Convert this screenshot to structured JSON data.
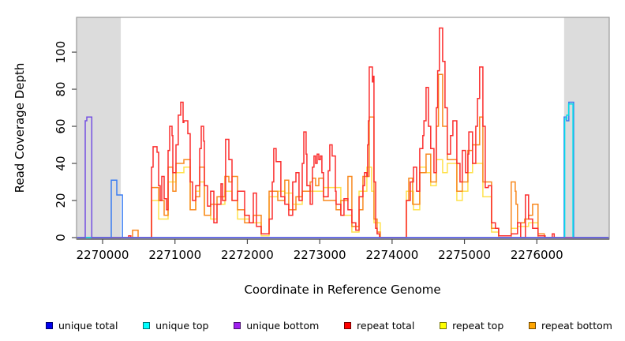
{
  "chart_data": {
    "type": "line",
    "subtype": "step",
    "title": "",
    "xlabel": "Coordinate in Reference Genome",
    "ylabel": "Read Coverage Depth",
    "x_range": [
      2269640,
      2277000
    ],
    "y_range": [
      0,
      118
    ],
    "x_ticks": [
      2270000,
      2271000,
      2272000,
      2273000,
      2274000,
      2275000,
      2276000
    ],
    "y_ticks": [
      0,
      20,
      40,
      60,
      80,
      100
    ],
    "grid": false,
    "legend_position": "bottom",
    "background_color": "#ffffff",
    "shaded_region_color": "#dcdcdc",
    "box_color": "#9a9a9a",
    "axis_color": "#4a4a4a",
    "shaded_regions": [
      {
        "x0": 2269640,
        "x1": 2270251
      },
      {
        "x0": 2276377,
        "x1": 2277000
      }
    ],
    "draw_order": [
      4,
      5,
      3,
      0,
      1,
      2
    ],
    "series": [
      {
        "name": "unique total",
        "legend_color": "#0000ee",
        "line_color": "#3a7df2",
        "points": [
          [
            2269640,
            0
          ],
          [
            2270120,
            31
          ],
          [
            2270196,
            23
          ],
          [
            2270273,
            0
          ],
          [
            2276377,
            65
          ],
          [
            2276410,
            63
          ],
          [
            2276442,
            73
          ],
          [
            2276508,
            0
          ]
        ]
      },
      {
        "name": "unique top",
        "legend_color": "#00ffff",
        "line_color": "#00dde8",
        "points": [
          [
            2269640,
            0
          ],
          [
            2276385,
            64
          ],
          [
            2276412,
            66
          ],
          [
            2276440,
            72
          ],
          [
            2276500,
            0
          ]
        ]
      },
      {
        "name": "unique bottom",
        "legend_color": "#a020f0",
        "line_color": "#7450e2",
        "points": [
          [
            2269640,
            0
          ],
          [
            2269760,
            63
          ],
          [
            2269782,
            65
          ],
          [
            2269850,
            0
          ]
        ]
      },
      {
        "name": "repeat total",
        "legend_color": "#ff0000",
        "line_color": "#fb2e2e",
        "points": [
          [
            2269640,
            0
          ],
          [
            2270360,
            1
          ],
          [
            2270390,
            0
          ],
          [
            2270676,
            38
          ],
          [
            2270698,
            49
          ],
          [
            2270752,
            46
          ],
          [
            2270774,
            28
          ],
          [
            2270796,
            20
          ],
          [
            2270818,
            33
          ],
          [
            2270850,
            21
          ],
          [
            2270883,
            15
          ],
          [
            2270905,
            47
          ],
          [
            2270927,
            60
          ],
          [
            2270959,
            55
          ],
          [
            2270970,
            35
          ],
          [
            2271014,
            50
          ],
          [
            2271046,
            66
          ],
          [
            2271079,
            73
          ],
          [
            2271112,
            62
          ],
          [
            2271123,
            63
          ],
          [
            2271177,
            56
          ],
          [
            2271210,
            30
          ],
          [
            2271243,
            20
          ],
          [
            2271286,
            28
          ],
          [
            2271341,
            48
          ],
          [
            2271363,
            60
          ],
          [
            2271395,
            52
          ],
          [
            2271406,
            28
          ],
          [
            2271450,
            17
          ],
          [
            2271493,
            25
          ],
          [
            2271537,
            8
          ],
          [
            2271581,
            18
          ],
          [
            2271635,
            29
          ],
          [
            2271657,
            20
          ],
          [
            2271700,
            53
          ],
          [
            2271744,
            42
          ],
          [
            2271788,
            20
          ],
          [
            2271864,
            25
          ],
          [
            2271918,
            25
          ],
          [
            2271962,
            12
          ],
          [
            2272027,
            8
          ],
          [
            2272082,
            24
          ],
          [
            2272126,
            6
          ],
          [
            2272191,
            2
          ],
          [
            2272300,
            10
          ],
          [
            2272344,
            30
          ],
          [
            2272365,
            48
          ],
          [
            2272398,
            41
          ],
          [
            2272463,
            22
          ],
          [
            2272518,
            18
          ],
          [
            2272572,
            12
          ],
          [
            2272627,
            30
          ],
          [
            2272671,
            35
          ],
          [
            2272714,
            20
          ],
          [
            2272758,
            40
          ],
          [
            2272780,
            57
          ],
          [
            2272812,
            45
          ],
          [
            2272823,
            28
          ],
          [
            2272867,
            18
          ],
          [
            2272899,
            38
          ],
          [
            2272921,
            44
          ],
          [
            2272943,
            40
          ],
          [
            2272965,
            45
          ],
          [
            2272987,
            42
          ],
          [
            2273009,
            44
          ],
          [
            2273030,
            35
          ],
          [
            2273052,
            22
          ],
          [
            2273117,
            36
          ],
          [
            2273139,
            50
          ],
          [
            2273172,
            44
          ],
          [
            2273216,
            25
          ],
          [
            2273226,
            18
          ],
          [
            2273292,
            12
          ],
          [
            2273335,
            21
          ],
          [
            2273390,
            15
          ],
          [
            2273444,
            8
          ],
          [
            2273499,
            4
          ],
          [
            2273543,
            22
          ],
          [
            2273597,
            28
          ],
          [
            2273619,
            35
          ],
          [
            2273652,
            33
          ],
          [
            2273662,
            50
          ],
          [
            2273673,
            63
          ],
          [
            2273684,
            92
          ],
          [
            2273728,
            84
          ],
          [
            2273739,
            87
          ],
          [
            2273750,
            30
          ],
          [
            2273772,
            5
          ],
          [
            2273793,
            2
          ],
          [
            2273826,
            0
          ],
          [
            2274197,
            20
          ],
          [
            2274251,
            30
          ],
          [
            2274295,
            38
          ],
          [
            2274338,
            25
          ],
          [
            2274382,
            48
          ],
          [
            2274425,
            55
          ],
          [
            2274440,
            63
          ],
          [
            2274469,
            81
          ],
          [
            2274502,
            60
          ],
          [
            2274534,
            48
          ],
          [
            2274578,
            35
          ],
          [
            2274611,
            70
          ],
          [
            2274630,
            90
          ],
          [
            2274654,
            113
          ],
          [
            2274698,
            95
          ],
          [
            2274731,
            70
          ],
          [
            2274763,
            45
          ],
          [
            2274807,
            55
          ],
          [
            2274840,
            63
          ],
          [
            2274894,
            40
          ],
          [
            2274938,
            30
          ],
          [
            2274970,
            47
          ],
          [
            2275014,
            35
          ],
          [
            2275047,
            45
          ],
          [
            2275060,
            57
          ],
          [
            2275112,
            40
          ],
          [
            2275156,
            60
          ],
          [
            2275180,
            75
          ],
          [
            2275210,
            92
          ],
          [
            2275254,
            60
          ],
          [
            2275287,
            27
          ],
          [
            2275330,
            28
          ],
          [
            2275374,
            8
          ],
          [
            2275428,
            5
          ],
          [
            2275472,
            1
          ],
          [
            2275646,
            2
          ],
          [
            2275733,
            8
          ],
          [
            2275777,
            0
          ],
          [
            2275842,
            23
          ],
          [
            2275886,
            10
          ],
          [
            2275941,
            5
          ],
          [
            2276017,
            1
          ],
          [
            2276115,
            0
          ],
          [
            2276213,
            2
          ],
          [
            2276240,
            0
          ]
        ]
      },
      {
        "name": "repeat top",
        "legend_color": "#ffff00",
        "line_color": "#ffe24d",
        "points": [
          [
            2269640,
            0
          ],
          [
            2270676,
            20
          ],
          [
            2270774,
            10
          ],
          [
            2270905,
            30
          ],
          [
            2271014,
            35
          ],
          [
            2271123,
            38
          ],
          [
            2271210,
            15
          ],
          [
            2271286,
            25
          ],
          [
            2271341,
            30
          ],
          [
            2271406,
            12
          ],
          [
            2271493,
            10
          ],
          [
            2271581,
            18
          ],
          [
            2271690,
            25
          ],
          [
            2271788,
            20
          ],
          [
            2271864,
            10
          ],
          [
            2272027,
            8
          ],
          [
            2272191,
            1
          ],
          [
            2272300,
            22
          ],
          [
            2272420,
            25
          ],
          [
            2272518,
            24
          ],
          [
            2272627,
            18
          ],
          [
            2272758,
            25
          ],
          [
            2272899,
            25
          ],
          [
            2273052,
            27
          ],
          [
            2273226,
            27
          ],
          [
            2273292,
            12
          ],
          [
            2273444,
            3
          ],
          [
            2273543,
            25
          ],
          [
            2273652,
            38
          ],
          [
            2273717,
            25
          ],
          [
            2273750,
            8
          ],
          [
            2273837,
            0
          ],
          [
            2274197,
            25
          ],
          [
            2274295,
            15
          ],
          [
            2274382,
            38
          ],
          [
            2274469,
            35
          ],
          [
            2274534,
            28
          ],
          [
            2274611,
            42
          ],
          [
            2274698,
            35
          ],
          [
            2274763,
            40
          ],
          [
            2274894,
            20
          ],
          [
            2274970,
            25
          ],
          [
            2275047,
            35
          ],
          [
            2275112,
            40
          ],
          [
            2275254,
            22
          ],
          [
            2275374,
            3
          ],
          [
            2275472,
            0
          ],
          [
            2275646,
            5
          ],
          [
            2275733,
            6
          ],
          [
            2275886,
            8
          ],
          [
            2276017,
            0
          ]
        ]
      },
      {
        "name": "repeat bottom",
        "legend_color": "#ffa500",
        "line_color": "#f8891f",
        "points": [
          [
            2269640,
            0
          ],
          [
            2270414,
            4
          ],
          [
            2270491,
            0
          ],
          [
            2270676,
            27
          ],
          [
            2270774,
            20
          ],
          [
            2270850,
            12
          ],
          [
            2270905,
            38
          ],
          [
            2270970,
            25
          ],
          [
            2271014,
            40
          ],
          [
            2271123,
            42
          ],
          [
            2271210,
            15
          ],
          [
            2271286,
            22
          ],
          [
            2271341,
            38
          ],
          [
            2271406,
            12
          ],
          [
            2271493,
            18
          ],
          [
            2271581,
            22
          ],
          [
            2271690,
            33
          ],
          [
            2271744,
            30
          ],
          [
            2271788,
            33
          ],
          [
            2271864,
            15
          ],
          [
            2271962,
            8
          ],
          [
            2272082,
            12
          ],
          [
            2272191,
            2
          ],
          [
            2272300,
            25
          ],
          [
            2272420,
            20
          ],
          [
            2272518,
            31
          ],
          [
            2272572,
            15
          ],
          [
            2272671,
            22
          ],
          [
            2272758,
            25
          ],
          [
            2272867,
            30
          ],
          [
            2272899,
            32
          ],
          [
            2272943,
            28
          ],
          [
            2272987,
            32
          ],
          [
            2273052,
            20
          ],
          [
            2273226,
            15
          ],
          [
            2273292,
            20
          ],
          [
            2273390,
            33
          ],
          [
            2273444,
            6
          ],
          [
            2273543,
            15
          ],
          [
            2273597,
            33
          ],
          [
            2273684,
            65
          ],
          [
            2273750,
            10
          ],
          [
            2273793,
            3
          ],
          [
            2273837,
            0
          ],
          [
            2274197,
            20
          ],
          [
            2274230,
            32
          ],
          [
            2274284,
            18
          ],
          [
            2274382,
            35
          ],
          [
            2274469,
            45
          ],
          [
            2274534,
            30
          ],
          [
            2274611,
            60
          ],
          [
            2274640,
            88
          ],
          [
            2274698,
            60
          ],
          [
            2274763,
            42
          ],
          [
            2274894,
            25
          ],
          [
            2274970,
            30
          ],
          [
            2275047,
            47
          ],
          [
            2275112,
            50
          ],
          [
            2275210,
            65
          ],
          [
            2275254,
            30
          ],
          [
            2275374,
            5
          ],
          [
            2275472,
            1
          ],
          [
            2275646,
            30
          ],
          [
            2275701,
            25
          ],
          [
            2275712,
            18
          ],
          [
            2275733,
            8
          ],
          [
            2275832,
            10
          ],
          [
            2275886,
            12
          ],
          [
            2275941,
            18
          ],
          [
            2276017,
            2
          ],
          [
            2276104,
            0
          ]
        ]
      }
    ]
  }
}
